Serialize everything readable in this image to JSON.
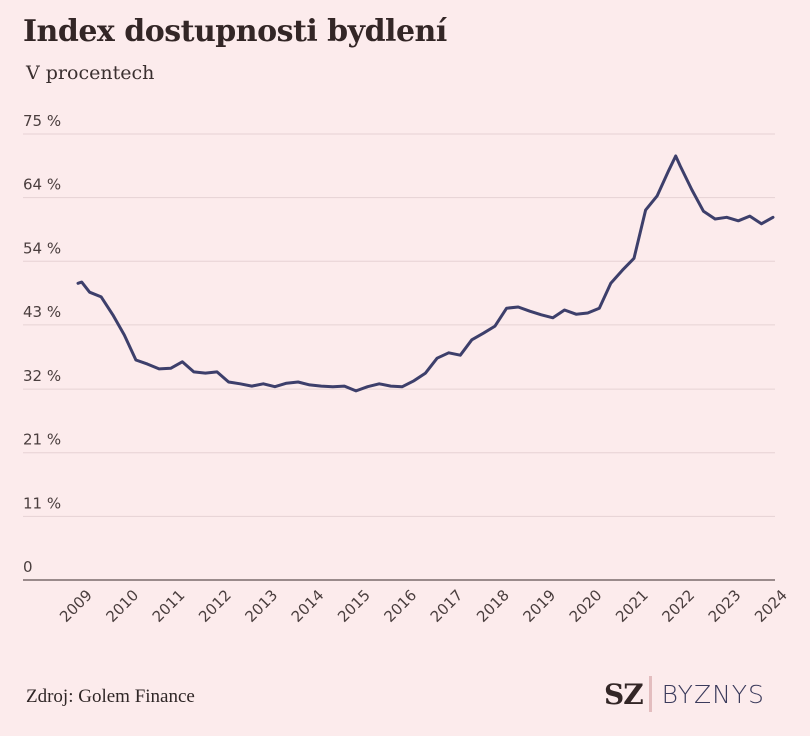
{
  "header": {
    "title": "Index dostupnosti bydlení",
    "subtitle": "V procentech"
  },
  "footer": {
    "source": "Zdroj: Golem Finance",
    "logo_primary": "SZ",
    "logo_secondary": "BYZNYS"
  },
  "colors": {
    "background": "#fcebec",
    "line": "#3d3f6b",
    "grid": "#e6d2d4",
    "axis": "#7a6a6b",
    "text": "#332626"
  },
  "chart_data": {
    "type": "line",
    "title": "Index dostupnosti bydlení",
    "subtitle": "V procentech",
    "xlabel": "",
    "ylabel": "",
    "ylim": [
      0,
      75
    ],
    "xlim": [
      2009,
      2024
    ],
    "grid": true,
    "y_ticks": [
      {
        "value": 0,
        "label": "0"
      },
      {
        "value": 10.7,
        "label": "11 %"
      },
      {
        "value": 21.4,
        "label": "21 %"
      },
      {
        "value": 32.1,
        "label": "32 %"
      },
      {
        "value": 42.9,
        "label": "43 %"
      },
      {
        "value": 53.6,
        "label": "54 %"
      },
      {
        "value": 64.3,
        "label": "64 %"
      },
      {
        "value": 75,
        "label": "75 %"
      }
    ],
    "x_ticks": [
      "2009",
      "2010",
      "2011",
      "2012",
      "2013",
      "2014",
      "2015",
      "2016",
      "2017",
      "2018",
      "2019",
      "2020",
      "2021",
      "2022",
      "2023",
      "2024"
    ],
    "series": [
      {
        "name": "Index dostupnosti bydlení",
        "x": [
          2009.0,
          2009.08,
          2009.25,
          2009.5,
          2009.75,
          2010.0,
          2010.25,
          2010.5,
          2010.75,
          2011.0,
          2011.25,
          2011.5,
          2011.75,
          2012.0,
          2012.25,
          2012.5,
          2012.75,
          2013.0,
          2013.25,
          2013.5,
          2013.75,
          2014.0,
          2014.25,
          2014.5,
          2014.75,
          2015.0,
          2015.25,
          2015.5,
          2015.75,
          2016.0,
          2016.25,
          2016.5,
          2016.75,
          2017.0,
          2017.25,
          2017.5,
          2017.75,
          2018.0,
          2018.25,
          2018.5,
          2018.75,
          2019.0,
          2019.25,
          2019.5,
          2019.75,
          2020.0,
          2020.25,
          2020.5,
          2020.75,
          2021.0,
          2021.25,
          2021.5,
          2021.75,
          2021.9,
          2022.0,
          2022.25,
          2022.5,
          2022.75,
          2023.0,
          2023.25,
          2023.5,
          2023.75,
          2024.0
        ],
        "values": [
          49.9,
          50.1,
          48.4,
          47.6,
          44.6,
          41.2,
          37.0,
          36.3,
          35.5,
          35.6,
          36.7,
          35.0,
          34.8,
          35.0,
          33.3,
          33.0,
          32.6,
          33.0,
          32.5,
          33.1,
          33.3,
          32.8,
          32.6,
          32.5,
          32.6,
          31.8,
          32.5,
          33.0,
          32.6,
          32.5,
          33.5,
          34.8,
          37.3,
          38.2,
          37.8,
          40.4,
          41.5,
          42.7,
          45.7,
          45.9,
          45.2,
          44.6,
          44.1,
          45.4,
          44.7,
          44.9,
          45.7,
          49.9,
          52.1,
          54.1,
          62.2,
          64.6,
          68.9,
          71.3,
          69.6,
          65.6,
          62.0,
          60.7,
          61.0,
          60.4,
          61.2,
          59.9,
          61.0
        ]
      }
    ]
  }
}
